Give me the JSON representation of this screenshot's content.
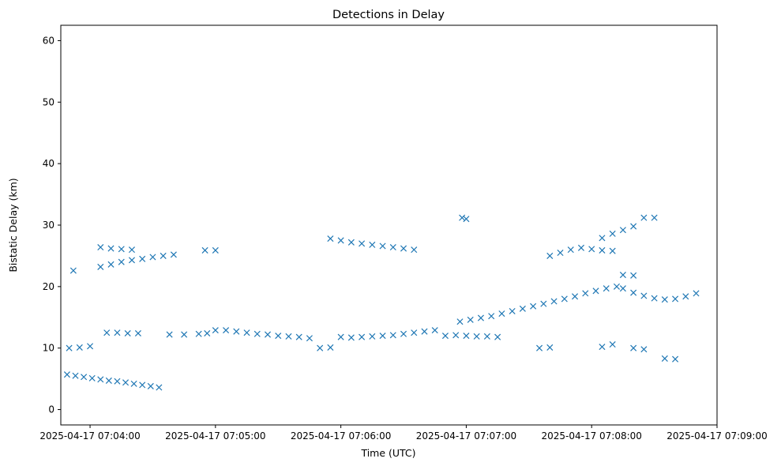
{
  "chart_data": {
    "type": "scatter",
    "title": "Detections in Delay",
    "xlabel": "Time (UTC)",
    "ylabel": "Bistatic Delay (km)",
    "marker": "x",
    "color": "#1f77b4",
    "grid": false,
    "xlim": [
      "2025-04-17 07:03:46",
      "2025-04-17 07:09:00"
    ],
    "ylim": [
      -2.5,
      62.5
    ],
    "xticks": [
      "2025-04-17 07:04:00",
      "2025-04-17 07:05:00",
      "2025-04-17 07:06:00",
      "2025-04-17 07:07:00",
      "2025-04-17 07:08:00",
      "2025-04-17 07:09:00"
    ],
    "yticks": [
      0,
      10,
      20,
      30,
      40,
      50,
      60
    ],
    "track_points": [
      [
        "2025-04-17 07:03:49",
        5.7
      ],
      [
        "2025-04-17 07:03:53",
        5.5
      ],
      [
        "2025-04-17 07:03:57",
        5.3
      ],
      [
        "2025-04-17 07:04:01",
        5.1
      ],
      [
        "2025-04-17 07:04:05",
        4.9
      ],
      [
        "2025-04-17 07:04:09",
        4.7
      ],
      [
        "2025-04-17 07:04:13",
        4.6
      ],
      [
        "2025-04-17 07:04:17",
        4.4
      ],
      [
        "2025-04-17 07:04:21",
        4.2
      ],
      [
        "2025-04-17 07:04:25",
        4.0
      ],
      [
        "2025-04-17 07:04:29",
        3.8
      ],
      [
        "2025-04-17 07:04:33",
        3.6
      ],
      [
        "2025-04-17 07:03:50",
        10.0
      ],
      [
        "2025-04-17 07:03:55",
        10.1
      ],
      [
        "2025-04-17 07:04:00",
        10.3
      ],
      [
        "2025-04-17 07:04:08",
        12.5
      ],
      [
        "2025-04-17 07:04:13",
        12.5
      ],
      [
        "2025-04-17 07:04:18",
        12.4
      ],
      [
        "2025-04-17 07:04:23",
        12.4
      ],
      [
        "2025-04-17 07:04:38",
        12.2
      ],
      [
        "2025-04-17 07:04:45",
        12.2
      ],
      [
        "2025-04-17 07:04:52",
        12.3
      ],
      [
        "2025-04-17 07:04:56",
        12.4
      ],
      [
        "2025-04-17 07:05:00",
        12.9
      ],
      [
        "2025-04-17 07:05:05",
        12.9
      ],
      [
        "2025-04-17 07:05:10",
        12.7
      ],
      [
        "2025-04-17 07:05:15",
        12.5
      ],
      [
        "2025-04-17 07:05:20",
        12.3
      ],
      [
        "2025-04-17 07:05:25",
        12.2
      ],
      [
        "2025-04-17 07:05:30",
        12.0
      ],
      [
        "2025-04-17 07:05:35",
        11.9
      ],
      [
        "2025-04-17 07:05:40",
        11.8
      ],
      [
        "2025-04-17 07:05:45",
        11.6
      ],
      [
        "2025-04-17 07:05:50",
        10.0
      ],
      [
        "2025-04-17 07:05:55",
        10.1
      ],
      [
        "2025-04-17 07:06:00",
        11.8
      ],
      [
        "2025-04-17 07:06:05",
        11.7
      ],
      [
        "2025-04-17 07:06:10",
        11.8
      ],
      [
        "2025-04-17 07:06:15",
        11.9
      ],
      [
        "2025-04-17 07:06:20",
        12.0
      ],
      [
        "2025-04-17 07:06:25",
        12.1
      ],
      [
        "2025-04-17 07:06:30",
        12.3
      ],
      [
        "2025-04-17 07:06:35",
        12.5
      ],
      [
        "2025-04-17 07:06:40",
        12.7
      ],
      [
        "2025-04-17 07:06:45",
        12.9
      ],
      [
        "2025-04-17 07:06:50",
        12.0
      ],
      [
        "2025-04-17 07:06:55",
        12.1
      ],
      [
        "2025-04-17 07:07:00",
        12.0
      ],
      [
        "2025-04-17 07:07:05",
        11.9
      ],
      [
        "2025-04-17 07:07:10",
        11.9
      ],
      [
        "2025-04-17 07:07:15",
        11.8
      ],
      [
        "2025-04-17 07:06:57",
        14.3
      ],
      [
        "2025-04-17 07:07:02",
        14.6
      ],
      [
        "2025-04-17 07:07:07",
        14.9
      ],
      [
        "2025-04-17 07:07:12",
        15.2
      ],
      [
        "2025-04-17 07:07:17",
        15.6
      ],
      [
        "2025-04-17 07:07:22",
        16.0
      ],
      [
        "2025-04-17 07:07:27",
        16.4
      ],
      [
        "2025-04-17 07:07:32",
        16.8
      ],
      [
        "2025-04-17 07:07:37",
        17.2
      ],
      [
        "2025-04-17 07:07:42",
        17.6
      ],
      [
        "2025-04-17 07:07:47",
        18.0
      ],
      [
        "2025-04-17 07:07:52",
        18.4
      ],
      [
        "2025-04-17 07:07:57",
        18.9
      ],
      [
        "2025-04-17 07:08:02",
        19.3
      ],
      [
        "2025-04-17 07:08:07",
        19.7
      ],
      [
        "2025-04-17 07:08:12",
        20.0
      ],
      [
        "2025-04-17 07:08:15",
        19.7
      ],
      [
        "2025-04-17 07:08:20",
        19.0
      ],
      [
        "2025-04-17 07:08:25",
        18.5
      ],
      [
        "2025-04-17 07:08:30",
        18.1
      ],
      [
        "2025-04-17 07:08:35",
        17.9
      ],
      [
        "2025-04-17 07:08:40",
        18.0
      ],
      [
        "2025-04-17 07:08:45",
        18.4
      ],
      [
        "2025-04-17 07:08:50",
        18.9
      ],
      [
        "2025-04-17 07:07:35",
        10.0
      ],
      [
        "2025-04-17 07:07:40",
        10.1
      ],
      [
        "2025-04-17 07:08:05",
        10.2
      ],
      [
        "2025-04-17 07:08:10",
        10.6
      ],
      [
        "2025-04-17 07:08:20",
        10.0
      ],
      [
        "2025-04-17 07:08:25",
        9.8
      ],
      [
        "2025-04-17 07:08:35",
        8.3
      ],
      [
        "2025-04-17 07:08:40",
        8.2
      ],
      [
        "2025-04-17 07:03:52",
        22.6
      ],
      [
        "2025-04-17 07:04:05",
        23.2
      ],
      [
        "2025-04-17 07:04:10",
        23.6
      ],
      [
        "2025-04-17 07:04:15",
        24.0
      ],
      [
        "2025-04-17 07:04:20",
        24.3
      ],
      [
        "2025-04-17 07:04:25",
        24.5
      ],
      [
        "2025-04-17 07:04:30",
        24.8
      ],
      [
        "2025-04-17 07:04:35",
        25.0
      ],
      [
        "2025-04-17 07:04:40",
        25.2
      ],
      [
        "2025-04-17 07:04:05",
        26.4
      ],
      [
        "2025-04-17 07:04:10",
        26.2
      ],
      [
        "2025-04-17 07:04:15",
        26.1
      ],
      [
        "2025-04-17 07:04:20",
        26.0
      ],
      [
        "2025-04-17 07:04:55",
        25.9
      ],
      [
        "2025-04-17 07:05:00",
        25.9
      ],
      [
        "2025-04-17 07:05:55",
        27.8
      ],
      [
        "2025-04-17 07:06:00",
        27.5
      ],
      [
        "2025-04-17 07:06:05",
        27.2
      ],
      [
        "2025-04-17 07:06:10",
        27.0
      ],
      [
        "2025-04-17 07:06:15",
        26.8
      ],
      [
        "2025-04-17 07:06:20",
        26.6
      ],
      [
        "2025-04-17 07:06:25",
        26.4
      ],
      [
        "2025-04-17 07:06:30",
        26.2
      ],
      [
        "2025-04-17 07:06:35",
        26.0
      ],
      [
        "2025-04-17 07:07:40",
        25.0
      ],
      [
        "2025-04-17 07:07:45",
        25.5
      ],
      [
        "2025-04-17 07:07:50",
        26.0
      ],
      [
        "2025-04-17 07:07:55",
        26.3
      ],
      [
        "2025-04-17 07:08:00",
        26.1
      ],
      [
        "2025-04-17 07:08:05",
        25.9
      ],
      [
        "2025-04-17 07:08:10",
        25.8
      ],
      [
        "2025-04-17 07:08:15",
        21.9
      ],
      [
        "2025-04-17 07:08:20",
        21.8
      ],
      [
        "2025-04-17 07:08:05",
        27.9
      ],
      [
        "2025-04-17 07:08:10",
        28.6
      ],
      [
        "2025-04-17 07:08:15",
        29.2
      ],
      [
        "2025-04-17 07:08:20",
        29.8
      ],
      [
        "2025-04-17 07:08:25",
        31.2
      ],
      [
        "2025-04-17 07:08:30",
        31.2
      ],
      [
        "2025-04-17 07:07:00",
        31.0
      ],
      [
        "2025-04-17 07:06:58",
        31.2
      ]
    ]
  }
}
